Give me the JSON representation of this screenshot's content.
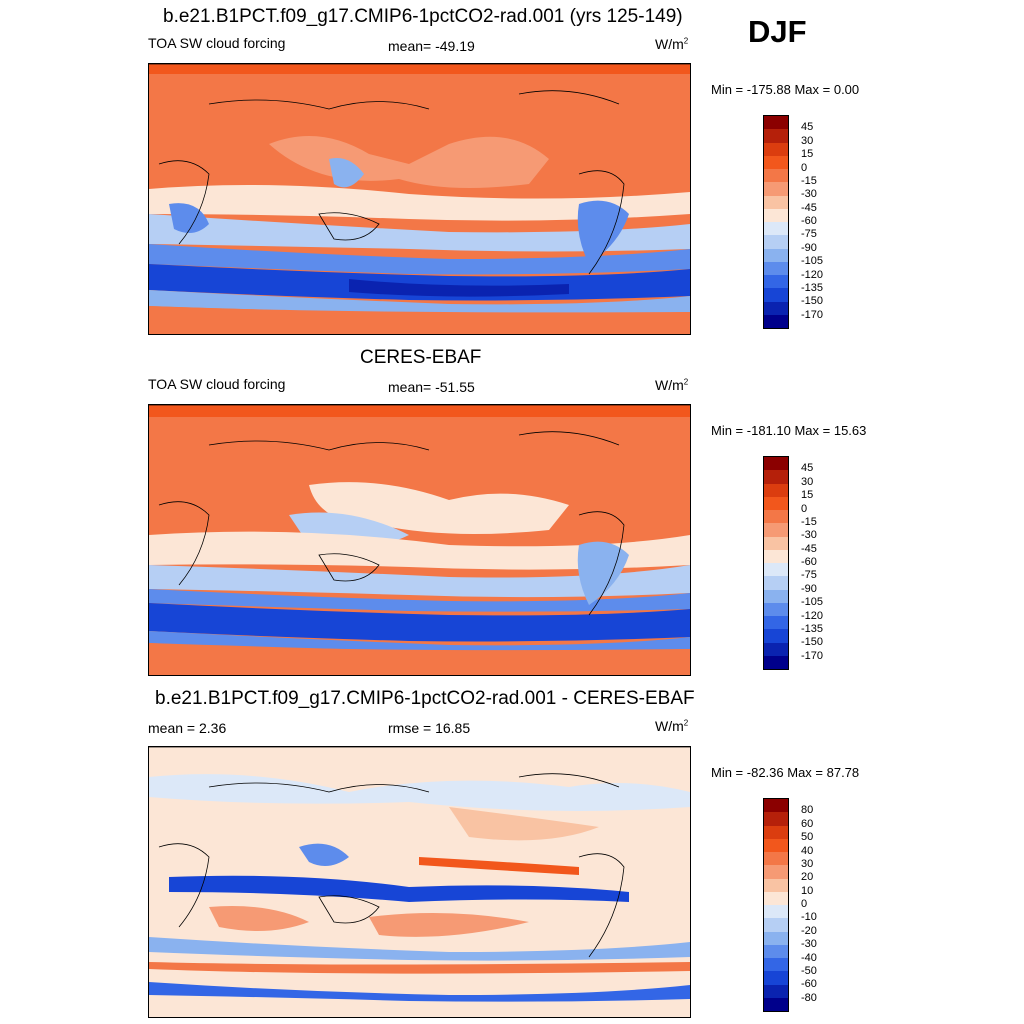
{
  "season": "DJF",
  "panels": [
    {
      "title": "b.e21.B1PCT.f09_g17.CMIP6-1pctCO2-rad.001 (yrs 125-149)",
      "left_label": "TOA SW cloud forcing",
      "center_label": "mean= -49.19",
      "units_base": "W/m",
      "units_exp": "2",
      "minmax": "Min = -175.88 Max =   0.00",
      "scale": "abs"
    },
    {
      "title": "CERES-EBAF",
      "left_label": "TOA SW cloud forcing",
      "center_label": "mean= -51.55",
      "units_base": "W/m",
      "units_exp": "2",
      "minmax": "Min = -181.10 Max =  15.63",
      "scale": "abs"
    },
    {
      "title": "b.e21.B1PCT.f09_g17.CMIP6-1pctCO2-rad.001 - CERES-EBAF",
      "left_label": "mean =   2.36",
      "center_label": "rmse =  16.85",
      "units_base": "W/m",
      "units_exp": "2",
      "minmax": "Min = -82.36 Max =  87.78",
      "scale": "diff"
    }
  ],
  "colorbars": {
    "abs": {
      "labels": [
        "45",
        "30",
        "15",
        "0",
        "-15",
        "-30",
        "-45",
        "-60",
        "-75",
        "-90",
        "-105",
        "-120",
        "-135",
        "-150",
        "-170"
      ],
      "colors": [
        "#8b0000",
        "#b5200a",
        "#db3d0f",
        "#f2571c",
        "#f37747",
        "#f69a74",
        "#f9c3a3",
        "#fce6d6",
        "#dce8f8",
        "#b6cff4",
        "#8ab2ef",
        "#5d8cec",
        "#3366e6",
        "#1745d6",
        "#0a23b0",
        "#00008b"
      ]
    },
    "diff": {
      "labels": [
        "80",
        "60",
        "50",
        "40",
        "30",
        "20",
        "10",
        "0",
        "-10",
        "-20",
        "-30",
        "-40",
        "-50",
        "-60",
        "-80"
      ],
      "colors": [
        "#8b0000",
        "#b5200a",
        "#db3d0f",
        "#f2571c",
        "#f37747",
        "#f69a74",
        "#f9c3a3",
        "#fce6d6",
        "#dce8f8",
        "#b6cff4",
        "#8ab2ef",
        "#5d8cec",
        "#3366e6",
        "#1745d6",
        "#0a23b0",
        "#00008b"
      ]
    }
  }
}
